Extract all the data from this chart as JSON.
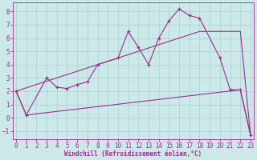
{
  "series1_x": [
    0,
    1,
    3,
    4,
    5,
    6,
    7,
    8,
    10,
    11,
    12,
    13,
    14,
    15,
    16,
    17,
    18,
    20,
    21,
    22,
    23
  ],
  "series1_y": [
    2.0,
    0.2,
    3.0,
    2.3,
    2.2,
    2.5,
    2.7,
    4.0,
    4.5,
    6.5,
    5.3,
    4.0,
    6.0,
    7.3,
    8.2,
    7.7,
    7.5,
    4.5,
    2.1,
    2.1,
    -1.3
  ],
  "series2_x": [
    0,
    18,
    22,
    23
  ],
  "series2_y": [
    2.0,
    6.5,
    6.5,
    -1.3
  ],
  "series3_x": [
    0,
    1,
    22,
    23
  ],
  "series3_y": [
    2.0,
    0.2,
    2.1,
    -1.3
  ],
  "color": "#9b2d8e",
  "bg_color": "#cce8e8",
  "grid_color": "#aad0d0",
  "xlabel": "Windchill (Refroidissement éolien,°C)",
  "xlim": [
    -0.3,
    23.3
  ],
  "ylim": [
    -1.6,
    8.7
  ],
  "yticks": [
    -1,
    0,
    1,
    2,
    3,
    4,
    5,
    6,
    7,
    8
  ],
  "xticks": [
    0,
    1,
    2,
    3,
    4,
    5,
    6,
    7,
    8,
    9,
    10,
    11,
    12,
    13,
    14,
    15,
    16,
    17,
    18,
    19,
    20,
    21,
    22,
    23
  ],
  "tick_fontsize": 5.5,
  "xlabel_fontsize": 5.5
}
